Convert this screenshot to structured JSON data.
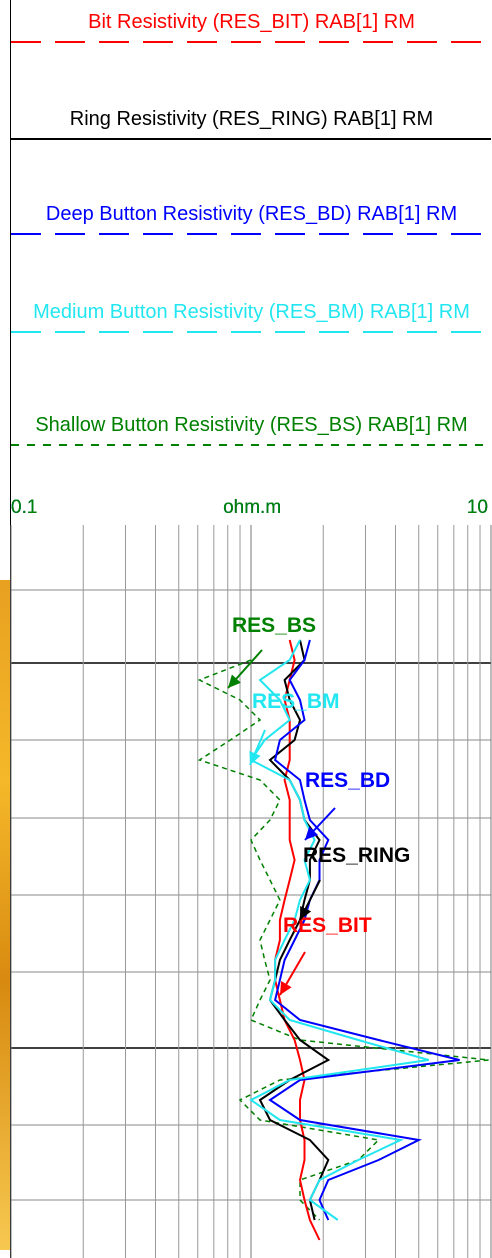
{
  "chart_data": {
    "type": "line",
    "orientation": "vertical",
    "log_x": true,
    "xlim": [
      0.1,
      10
    ],
    "x_unit": "ohm.m",
    "xticks": [
      0.1,
      1,
      10
    ],
    "minor_xticks": [
      0.2,
      0.3,
      0.4,
      0.5,
      0.6,
      0.7,
      0.8,
      0.9,
      2,
      3,
      4,
      5,
      6,
      7,
      8,
      9
    ],
    "grid": true,
    "categories": [
      null,
      null,
      null,
      null,
      null,
      null,
      null,
      null,
      null,
      null,
      null,
      null,
      null,
      null,
      null,
      null,
      null,
      null,
      null,
      null,
      null,
      null,
      null,
      null,
      null,
      null,
      null,
      null,
      null,
      null,
      null
    ],
    "series": [
      {
        "name": "Bit Resistivity (RES_BIT) RAB[1] RM",
        "label": "RES_BIT",
        "color": "#ff0000",
        "line_style": "dashed",
        "values": [
          1.45,
          1.52,
          1.45,
          1.38,
          1.45,
          1.45,
          1.45,
          1.38,
          1.45,
          1.45,
          1.45,
          1.52,
          1.45,
          1.38,
          1.32,
          1.32,
          1.26,
          1.26,
          1.32,
          1.38,
          1.52,
          1.6,
          1.67,
          1.6,
          1.6,
          1.67,
          1.67,
          1.6,
          1.67,
          1.76,
          1.93
        ]
      },
      {
        "name": "Ring Resistivity (RES_RING) RAB[1] RM",
        "label": "RES_RING",
        "color": "#000000",
        "line_style": "solid",
        "values": [
          1.6,
          1.67,
          1.38,
          1.45,
          1.6,
          1.52,
          1.2,
          1.45,
          1.6,
          1.67,
          1.93,
          1.76,
          1.76,
          1.67,
          1.6,
          1.45,
          1.32,
          1.26,
          1.2,
          1.38,
          1.6,
          2.1,
          1.45,
          1.09,
          1.2,
          1.76,
          2.1,
          1.93,
          1.76,
          1.84,
          null
        ]
      },
      {
        "name": "Deep Button Resistivity (RES_BD) RAB[1] RM",
        "label": "RES_BD",
        "color": "#0000ff",
        "line_style": "dashed",
        "values": [
          1.76,
          1.67,
          1.45,
          1.6,
          1.67,
          1.32,
          1.26,
          1.6,
          1.67,
          1.76,
          2.1,
          1.93,
          1.93,
          1.76,
          1.67,
          1.52,
          1.38,
          1.32,
          1.26,
          1.6,
          3.4,
          7.4,
          1.6,
          1.2,
          1.6,
          5.0,
          3.4,
          2.1,
          1.93,
          2.1,
          null
        ]
      },
      {
        "name": "Medium Button Resistivity (RES_BM) RAB[1] RM",
        "label": "RES_BM",
        "color": "#22e6f0",
        "line_style": "dashed",
        "values": [
          1.6,
          1.45,
          1.09,
          1.32,
          1.45,
          1.14,
          1.0,
          1.45,
          1.6,
          1.67,
          1.84,
          1.67,
          1.76,
          1.6,
          1.52,
          1.38,
          1.26,
          1.26,
          1.2,
          1.45,
          2.8,
          5.5,
          1.45,
          1.0,
          1.32,
          4.2,
          2.8,
          1.93,
          1.76,
          2.3,
          null
        ]
      },
      {
        "name": "Shallow Button Resistivity (RES_BS) RAB[1] RM",
        "label": "RES_BS",
        "color": "#008000",
        "line_style": "dotted",
        "values": [
          null,
          1.0,
          0.61,
          0.9,
          1.09,
          0.82,
          0.61,
          1.09,
          1.32,
          1.2,
          1.0,
          1.09,
          1.2,
          1.32,
          1.2,
          1.09,
          1.14,
          1.2,
          1.09,
          1.0,
          1.6,
          9.8,
          1.32,
          0.9,
          1.09,
          3.4,
          2.8,
          1.6,
          1.6,
          1.93,
          null
        ]
      }
    ]
  }
}
